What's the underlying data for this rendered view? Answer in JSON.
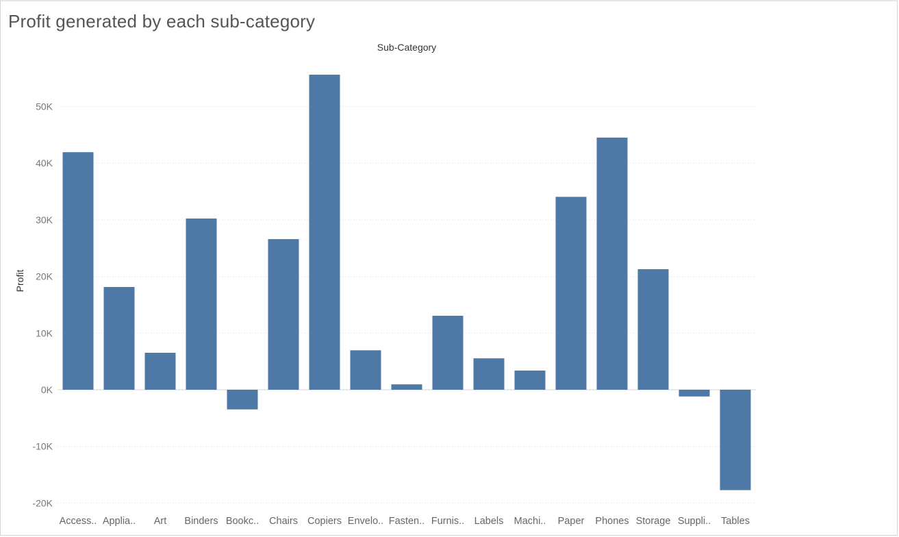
{
  "title": "Profit generated by each sub-category",
  "colors": {
    "bar": "#4e79a7",
    "grid": "#ececec",
    "zero_line": "#d6d6d6"
  },
  "chart_data": {
    "type": "bar",
    "title": "Profit generated by each sub-category",
    "xlabel": "Sub-Category",
    "xlabel_position": "top",
    "ylabel": "Profit",
    "categories": [
      "Access..",
      "Applia..",
      "Art",
      "Binders",
      "Bookc..",
      "Chairs",
      "Copiers",
      "Envelo..",
      "Fasten..",
      "Furnis..",
      "Labels",
      "Machi..",
      "Paper",
      "Phones",
      "Storage",
      "Suppli..",
      "Tables"
    ],
    "values": [
      41937,
      18138,
      6528,
      30222,
      -3473,
      26590,
      55618,
      6964,
      950,
      13059,
      5546,
      3385,
      34054,
      44516,
      21279,
      -1189,
      -17725
    ],
    "ylim": [
      -20000,
      60000
    ],
    "yticks": [
      -20000,
      -10000,
      0,
      10000,
      20000,
      30000,
      40000,
      50000
    ],
    "ytick_labels": [
      "-20K",
      "-10K",
      "0K",
      "10K",
      "20K",
      "30K",
      "40K",
      "50K"
    ],
    "grid": true,
    "legend": "none"
  }
}
